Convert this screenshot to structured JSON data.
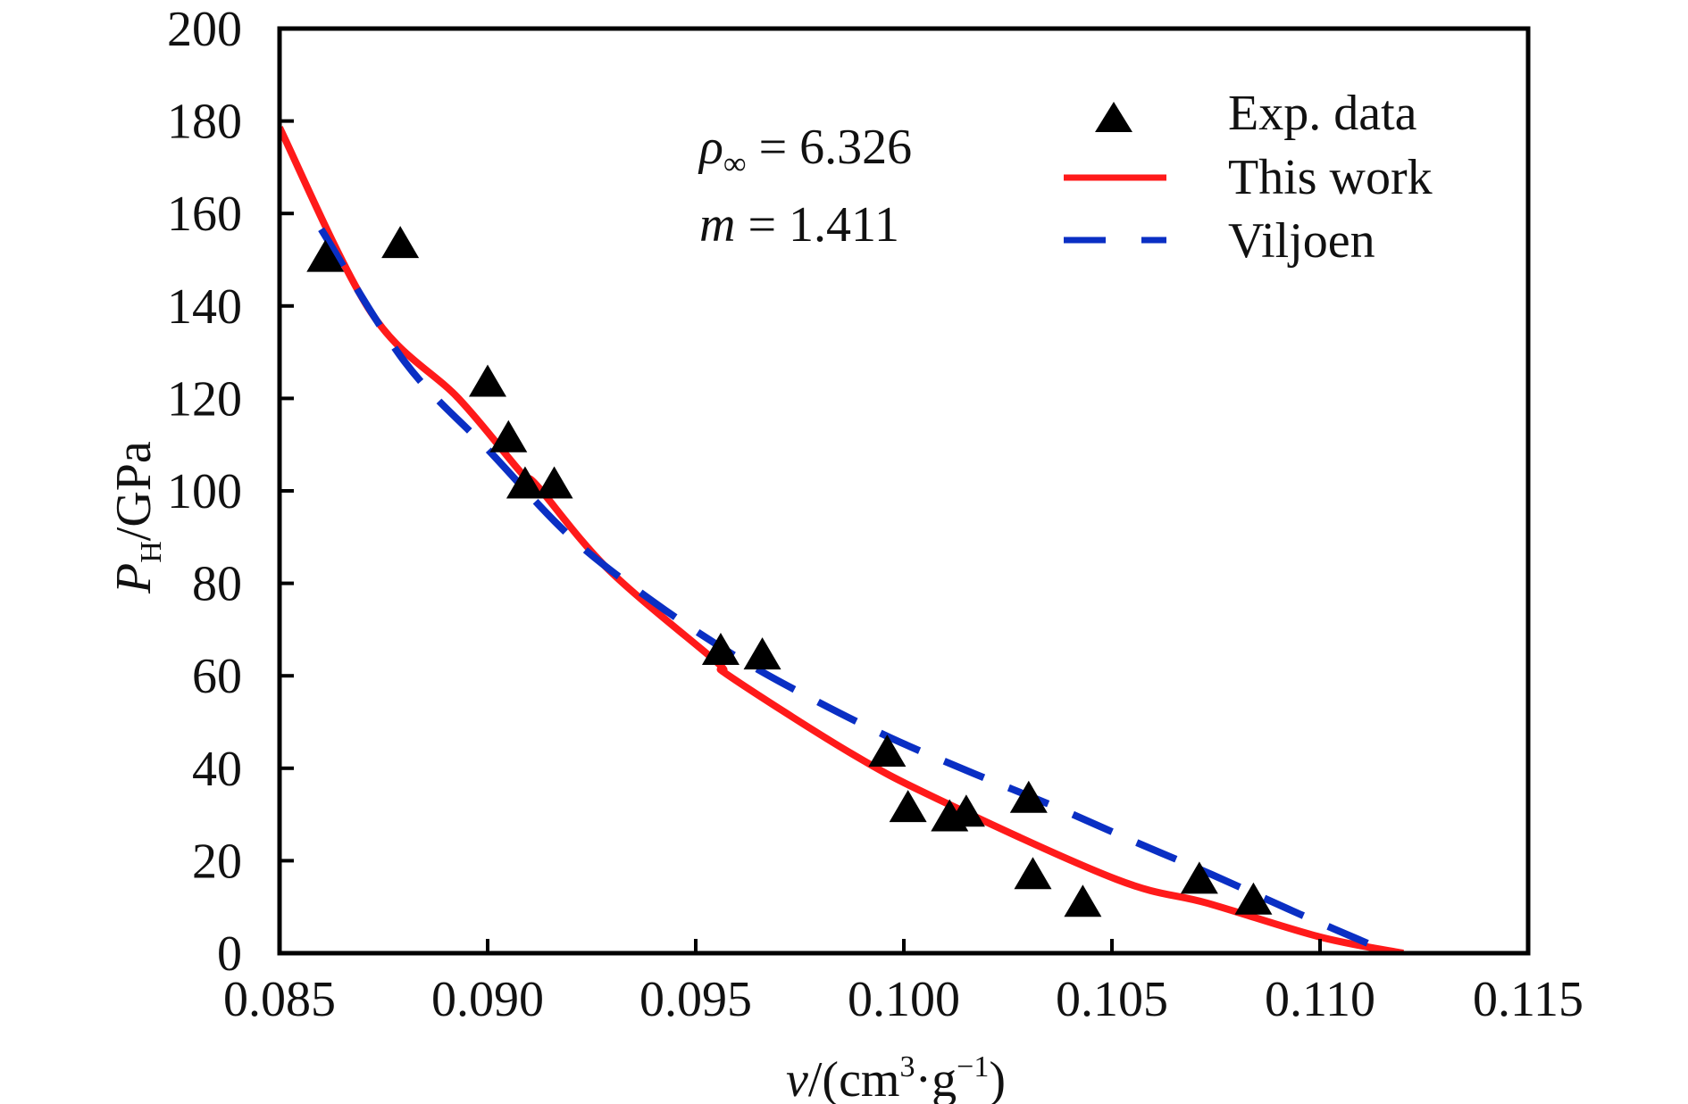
{
  "chart_data": {
    "type": "scatter",
    "title": "",
    "xlabel": {
      "var": "v",
      "rest": "/(cm",
      "sup1": "3",
      "mid": "·g",
      "sup2": "−1",
      "end": ")"
    },
    "ylabel": {
      "var": "P",
      "sub": "H",
      "rest": "/GPa"
    },
    "xlim": [
      0.085,
      0.115
    ],
    "ylim": [
      0,
      200
    ],
    "x_ticks": [
      "0.085",
      "0.090",
      "0.095",
      "0.100",
      "0.105",
      "0.110",
      "0.115"
    ],
    "x_tick_values": [
      0.085,
      0.09,
      0.095,
      0.1,
      0.105,
      0.11,
      0.115
    ],
    "y_ticks": [
      "0",
      "20",
      "40",
      "60",
      "80",
      "100",
      "120",
      "140",
      "160",
      "180",
      "200"
    ],
    "y_tick_values": [
      0,
      20,
      40,
      60,
      80,
      100,
      120,
      140,
      160,
      180,
      200
    ],
    "grid": false,
    "legend_position": "top-right",
    "annotations": [
      {
        "symbol": "ρ",
        "sub": "∞",
        "text": " = 6.326"
      },
      {
        "symbol": "m",
        "sub": "",
        "text": " = 1.411"
      }
    ],
    "series": [
      {
        "name": "Exp. data",
        "kind": "scatter",
        "marker": "triangle",
        "color": "#000000",
        "points": [
          [
            0.0861,
            150
          ],
          [
            0.0879,
            153
          ],
          [
            0.09,
            123
          ],
          [
            0.0905,
            111
          ],
          [
            0.0909,
            101
          ],
          [
            0.0916,
            101
          ],
          [
            0.0956,
            65
          ],
          [
            0.0966,
            64
          ],
          [
            0.0996,
            43
          ],
          [
            0.1001,
            31
          ],
          [
            0.1011,
            29
          ],
          [
            0.1015,
            30
          ],
          [
            0.103,
            33
          ],
          [
            0.1031,
            16.5
          ],
          [
            0.1043,
            10.5
          ],
          [
            0.1071,
            15.5
          ],
          [
            0.1084,
            11
          ]
        ]
      },
      {
        "name": "This work",
        "kind": "line",
        "style": "solid",
        "color": "#ff1a1a",
        "points": [
          [
            0.085,
            178.6
          ],
          [
            0.0872,
            138.6
          ],
          [
            0.0893,
            120
          ],
          [
            0.0908,
            104
          ],
          [
            0.0912,
            101
          ],
          [
            0.0929,
            83
          ],
          [
            0.0955,
            63
          ],
          [
            0.0958,
            60
          ],
          [
            0.0987,
            43.4
          ],
          [
            0.1008,
            33.4
          ],
          [
            0.1051,
            16
          ],
          [
            0.1073,
            10.8
          ],
          [
            0.11,
            3.5
          ],
          [
            0.112,
            0
          ]
        ]
      },
      {
        "name": "Viljoen",
        "kind": "line",
        "style": "dashed",
        "color": "#0a2fc4",
        "points": [
          [
            0.086,
            156.6
          ],
          [
            0.088,
            128
          ],
          [
            0.09,
            109
          ],
          [
            0.092,
            90
          ],
          [
            0.094,
            75.9
          ],
          [
            0.096,
            64
          ],
          [
            0.0978,
            55
          ],
          [
            0.0997,
            46.5
          ],
          [
            0.1017,
            38.8
          ],
          [
            0.1036,
            31.8
          ],
          [
            0.1055,
            24.3
          ],
          [
            0.1074,
            17
          ],
          [
            0.1095,
            8.5
          ],
          [
            0.1117,
            0
          ]
        ]
      }
    ]
  }
}
